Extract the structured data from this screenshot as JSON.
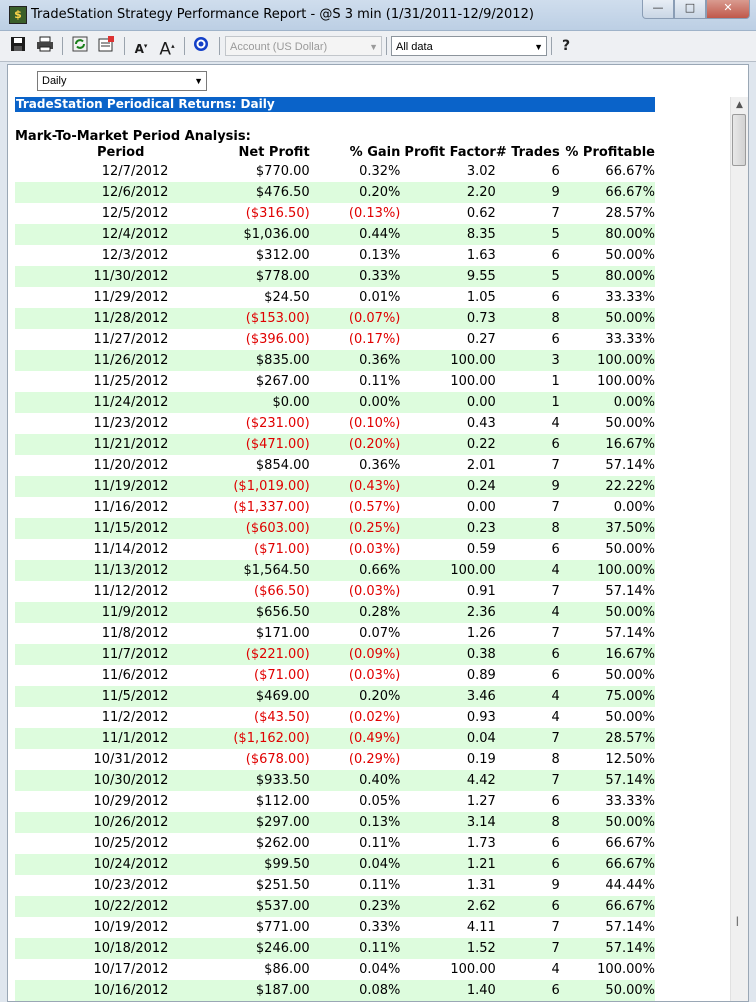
{
  "window": {
    "title": "TradeStation Strategy Performance Report - @S 3 min (1/31/2011-12/9/2012)",
    "app_icon": "$",
    "min_glyph": "—",
    "max_glyph": "□",
    "close_glyph": "✕"
  },
  "toolbar": {
    "account_combo": "Account (US Dollar)",
    "data_combo": "All data",
    "help_glyph": "?"
  },
  "period_select": "Daily",
  "banner": "TradeStation Periodical Returns: Daily",
  "section_title": "Mark-To-Market Period Analysis:",
  "columns": [
    "Period",
    "Net Profit",
    "% Gain",
    "Profit Factor",
    "# Trades",
    "% Profitable"
  ],
  "rows": [
    [
      "12/7/2012",
      "$770.00",
      "0.32%",
      "3.02",
      "6",
      "66.67%"
    ],
    [
      "12/6/2012",
      "$476.50",
      "0.20%",
      "2.20",
      "9",
      "66.67%"
    ],
    [
      "12/5/2012",
      "($316.50)",
      "(0.13%)",
      "0.62",
      "7",
      "28.57%"
    ],
    [
      "12/4/2012",
      "$1,036.00",
      "0.44%",
      "8.35",
      "5",
      "80.00%"
    ],
    [
      "12/3/2012",
      "$312.00",
      "0.13%",
      "1.63",
      "6",
      "50.00%"
    ],
    [
      "11/30/2012",
      "$778.00",
      "0.33%",
      "9.55",
      "5",
      "80.00%"
    ],
    [
      "11/29/2012",
      "$24.50",
      "0.01%",
      "1.05",
      "6",
      "33.33%"
    ],
    [
      "11/28/2012",
      "($153.00)",
      "(0.07%)",
      "0.73",
      "8",
      "50.00%"
    ],
    [
      "11/27/2012",
      "($396.00)",
      "(0.17%)",
      "0.27",
      "6",
      "33.33%"
    ],
    [
      "11/26/2012",
      "$835.00",
      "0.36%",
      "100.00",
      "3",
      "100.00%"
    ],
    [
      "11/25/2012",
      "$267.00",
      "0.11%",
      "100.00",
      "1",
      "100.00%"
    ],
    [
      "11/24/2012",
      "$0.00",
      "0.00%",
      "0.00",
      "1",
      "0.00%"
    ],
    [
      "11/23/2012",
      "($231.00)",
      "(0.10%)",
      "0.43",
      "4",
      "50.00%"
    ],
    [
      "11/21/2012",
      "($471.00)",
      "(0.20%)",
      "0.22",
      "6",
      "16.67%"
    ],
    [
      "11/20/2012",
      "$854.00",
      "0.36%",
      "2.01",
      "7",
      "57.14%"
    ],
    [
      "11/19/2012",
      "($1,019.00)",
      "(0.43%)",
      "0.24",
      "9",
      "22.22%"
    ],
    [
      "11/16/2012",
      "($1,337.00)",
      "(0.57%)",
      "0.00",
      "7",
      "0.00%"
    ],
    [
      "11/15/2012",
      "($603.00)",
      "(0.25%)",
      "0.23",
      "8",
      "37.50%"
    ],
    [
      "11/14/2012",
      "($71.00)",
      "(0.03%)",
      "0.59",
      "6",
      "50.00%"
    ],
    [
      "11/13/2012",
      "$1,564.50",
      "0.66%",
      "100.00",
      "4",
      "100.00%"
    ],
    [
      "11/12/2012",
      "($66.50)",
      "(0.03%)",
      "0.91",
      "7",
      "57.14%"
    ],
    [
      "11/9/2012",
      "$656.50",
      "0.28%",
      "2.36",
      "4",
      "50.00%"
    ],
    [
      "11/8/2012",
      "$171.00",
      "0.07%",
      "1.26",
      "7",
      "57.14%"
    ],
    [
      "11/7/2012",
      "($221.00)",
      "(0.09%)",
      "0.38",
      "6",
      "16.67%"
    ],
    [
      "11/6/2012",
      "($71.00)",
      "(0.03%)",
      "0.89",
      "6",
      "50.00%"
    ],
    [
      "11/5/2012",
      "$469.00",
      "0.20%",
      "3.46",
      "4",
      "75.00%"
    ],
    [
      "11/2/2012",
      "($43.50)",
      "(0.02%)",
      "0.93",
      "4",
      "50.00%"
    ],
    [
      "11/1/2012",
      "($1,162.00)",
      "(0.49%)",
      "0.04",
      "7",
      "28.57%"
    ],
    [
      "10/31/2012",
      "($678.00)",
      "(0.29%)",
      "0.19",
      "8",
      "12.50%"
    ],
    [
      "10/30/2012",
      "$933.50",
      "0.40%",
      "4.42",
      "7",
      "57.14%"
    ],
    [
      "10/29/2012",
      "$112.00",
      "0.05%",
      "1.27",
      "6",
      "33.33%"
    ],
    [
      "10/26/2012",
      "$297.00",
      "0.13%",
      "3.14",
      "8",
      "50.00%"
    ],
    [
      "10/25/2012",
      "$262.00",
      "0.11%",
      "1.73",
      "6",
      "66.67%"
    ],
    [
      "10/24/2012",
      "$99.50",
      "0.04%",
      "1.21",
      "6",
      "66.67%"
    ],
    [
      "10/23/2012",
      "$251.50",
      "0.11%",
      "1.31",
      "9",
      "44.44%"
    ],
    [
      "10/22/2012",
      "$537.00",
      "0.23%",
      "2.62",
      "6",
      "66.67%"
    ],
    [
      "10/19/2012",
      "$771.00",
      "0.33%",
      "4.11",
      "7",
      "57.14%"
    ],
    [
      "10/18/2012",
      "$246.00",
      "0.11%",
      "1.52",
      "7",
      "57.14%"
    ],
    [
      "10/17/2012",
      "$86.00",
      "0.04%",
      "100.00",
      "4",
      "100.00%"
    ],
    [
      "10/16/2012",
      "$187.00",
      "0.08%",
      "1.40",
      "6",
      "50.00%"
    ]
  ],
  "colors": {
    "banner": "#0a63c9",
    "alt_row": "#ddfcdd",
    "negative": "#e00000"
  }
}
